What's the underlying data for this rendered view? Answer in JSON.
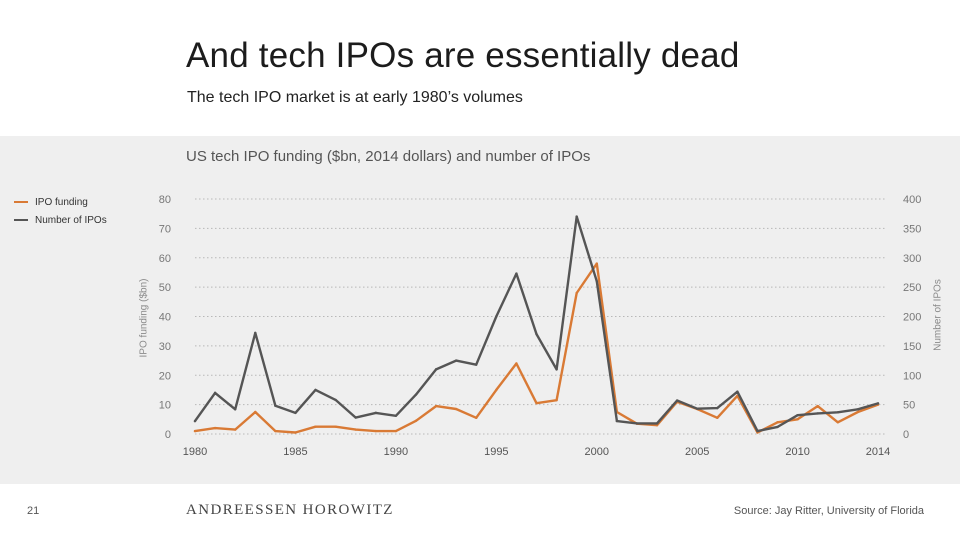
{
  "slide": {
    "title": "And tech IPOs are essentially dead",
    "subtitle": "The tech IPO market is at early 1980’s volumes",
    "page_number": "21",
    "brand": "ANDREESSEN HOROWITZ",
    "source": "Source: Jay Ritter, University of Florida"
  },
  "colors": {
    "ipo_funding": "#d97a35",
    "number_of_ipos": "#555555",
    "grid": "#b8b8b8",
    "panel_bg": "#efefef"
  },
  "chart_data": {
    "type": "line",
    "title": "US tech IPO funding ($bn, 2014 dollars) and number of IPOs",
    "ylabel": "IPO funding ($bn)",
    "y2label": "Number of IPOs",
    "ylim": [
      0,
      80
    ],
    "y2lim": [
      0,
      400
    ],
    "xlim": [
      1980,
      2014
    ],
    "x_ticks": [
      "1980",
      "1985",
      "1990",
      "1995",
      "2000",
      "2005",
      "2010",
      "2014"
    ],
    "y_ticks": [
      "0",
      "10",
      "20",
      "30",
      "40",
      "50",
      "60",
      "70",
      "80"
    ],
    "y2_ticks": [
      "0",
      "50",
      "100",
      "150",
      "200",
      "250",
      "300",
      "350",
      "400"
    ],
    "grid": "horizontal dotted",
    "legend_position": "left",
    "x": [
      1980,
      1981,
      1982,
      1983,
      1984,
      1985,
      1986,
      1987,
      1988,
      1989,
      1990,
      1991,
      1992,
      1993,
      1994,
      1995,
      1996,
      1997,
      1998,
      1999,
      2000,
      2001,
      2002,
      2003,
      2004,
      2005,
      2006,
      2007,
      2008,
      2009,
      2010,
      2011,
      2012,
      2013,
      2014
    ],
    "series": [
      {
        "name": "IPO funding",
        "axis": "left",
        "values": [
          1,
          2,
          1.5,
          7.5,
          1,
          0.5,
          2.5,
          2.5,
          1.5,
          1,
          1,
          4.5,
          9.5,
          8.5,
          5.5,
          15,
          24,
          10.5,
          11.5,
          48,
          58,
          7.5,
          3.5,
          3,
          11,
          8.5,
          5.5,
          13,
          0.5,
          4,
          5,
          9.5,
          4,
          7.5,
          10
        ]
      },
      {
        "name": "Number of IPOs",
        "axis": "right",
        "values": [
          22,
          70,
          42,
          172,
          48,
          36,
          75,
          58,
          28,
          36,
          31,
          67,
          110,
          125,
          118,
          200,
          273,
          170,
          110,
          370,
          260,
          22,
          18,
          18,
          57,
          43,
          44,
          72,
          5,
          12,
          32,
          35,
          37,
          42,
          52
        ]
      }
    ]
  }
}
